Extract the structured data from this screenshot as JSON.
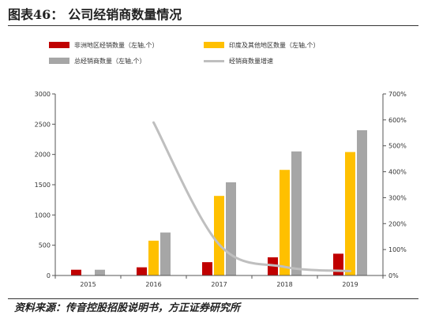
{
  "figure": {
    "title_number": "图表46：",
    "title_text": "公司经销商数量情况",
    "source": "资料来源：传音控股招股说明书，方正证券研究所"
  },
  "chart_data": {
    "type": "bar",
    "categories": [
      "2015",
      "2016",
      "2017",
      "2018",
      "2019"
    ],
    "series": [
      {
        "name": "非洲地区经销数量（左轴,个）",
        "kind": "bar",
        "axis": "left",
        "color": "#c00000",
        "values": [
          95,
          135,
          220,
          300,
          360
        ]
      },
      {
        "name": "印度及其他地区数量（左轴,个）",
        "kind": "bar",
        "axis": "left",
        "color": "#ffc000",
        "values": [
          null,
          575,
          1315,
          1745,
          2040
        ]
      },
      {
        "name": "总经销商数量（左轴,个）",
        "kind": "bar",
        "axis": "left",
        "color": "#a6a6a6",
        "values": [
          95,
          710,
          1540,
          2050,
          2400
        ]
      },
      {
        "name": "经销商数量增速",
        "kind": "line",
        "axis": "right",
        "color": "#bfbfbf",
        "values": [
          null,
          5.9,
          1.2,
          0.33,
          0.17
        ]
      }
    ],
    "y_left": {
      "min": 0,
      "max": 3000,
      "ticks": [
        "0",
        "500",
        "1000",
        "1500",
        "2000",
        "2500",
        "3000"
      ]
    },
    "y_right": {
      "min": 0,
      "max": 7,
      "ticks": [
        "0%",
        "100%",
        "200%",
        "300%",
        "400%",
        "500%",
        "600%",
        "700%"
      ]
    },
    "grid": false,
    "legend_position": "top"
  }
}
